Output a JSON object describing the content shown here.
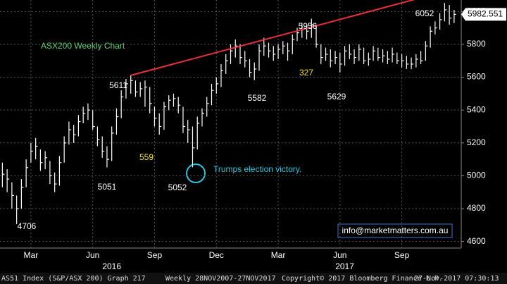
{
  "chart_data": {
    "type": "hlc",
    "title": "ASX200 Weekly Chart",
    "high": [
      5080,
      5040,
      4960,
      4880,
      4980,
      5100,
      5200,
      5230,
      5160,
      5150,
      5090,
      5020,
      5120,
      5240,
      5330,
      5310,
      5370,
      5420,
      5440,
      5400,
      5300,
      5240,
      5180,
      5300,
      5410,
      5520,
      5590,
      5611,
      5580,
      5570,
      5580,
      5540,
      5420,
      5380,
      5450,
      5490,
      5500,
      5480,
      5420,
      5340,
      5300,
      5360,
      5410,
      5480,
      5560,
      5600,
      5680,
      5740,
      5800,
      5830,
      5800,
      5760,
      5710,
      5690,
      5800,
      5840,
      5810,
      5790,
      5800,
      5820,
      5810,
      5860,
      5900,
      5930,
      5920,
      5956,
      5920,
      5800,
      5780,
      5770,
      5760,
      5750,
      5790,
      5800,
      5770,
      5800,
      5780,
      5750,
      5790,
      5780,
      5770,
      5760,
      5780,
      5750,
      5740,
      5730,
      5720,
      5740,
      5760,
      5820,
      5910,
      5940,
      5990,
      6052,
      6040,
      6010
    ],
    "low": [
      4930,
      4900,
      4800,
      4706,
      4800,
      4930,
      5080,
      5100,
      5030,
      5040,
      4950,
      4900,
      4940,
      5080,
      5190,
      5200,
      5240,
      5320,
      5340,
      5280,
      5180,
      5110,
      5051,
      5090,
      5250,
      5350,
      5470,
      5500,
      5480,
      5480,
      5420,
      5380,
      5300,
      5250,
      5280,
      5400,
      5420,
      5380,
      5260,
      5200,
      5052,
      5160,
      5300,
      5360,
      5430,
      5500,
      5540,
      5620,
      5680,
      5720,
      5680,
      5660,
      5600,
      5582,
      5640,
      5730,
      5720,
      5700,
      5710,
      5740,
      5700,
      5740,
      5820,
      5840,
      5830,
      5840,
      5780,
      5680,
      5700,
      5660,
      5680,
      5629,
      5670,
      5710,
      5680,
      5700,
      5680,
      5670,
      5700,
      5700,
      5690,
      5680,
      5690,
      5680,
      5660,
      5650,
      5650,
      5660,
      5680,
      5700,
      5780,
      5860,
      5890,
      5940,
      5920,
      5930
    ],
    "close": [
      5010,
      4980,
      4880,
      4800,
      4930,
      5050,
      5150,
      5180,
      5080,
      5110,
      5000,
      4950,
      5080,
      5200,
      5280,
      5250,
      5330,
      5380,
      5400,
      5300,
      5220,
      5150,
      5100,
      5260,
      5360,
      5480,
      5560,
      5580,
      5510,
      5530,
      5540,
      5440,
      5350,
      5300,
      5420,
      5460,
      5470,
      5430,
      5300,
      5280,
      5170,
      5320,
      5380,
      5440,
      5520,
      5560,
      5640,
      5700,
      5760,
      5790,
      5720,
      5700,
      5630,
      5650,
      5760,
      5790,
      5760,
      5740,
      5770,
      5790,
      5760,
      5830,
      5870,
      5890,
      5880,
      5920,
      5800,
      5720,
      5740,
      5700,
      5720,
      5680,
      5760,
      5740,
      5720,
      5770,
      5700,
      5710,
      5760,
      5720,
      5730,
      5710,
      5740,
      5700,
      5700,
      5680,
      5680,
      5710,
      5700,
      5790,
      5880,
      5900,
      5950,
      6010,
      5960,
      5982.551
    ],
    "color": "#ffffff",
    "xlim": [
      -0.5,
      96.5
    ],
    "xticks": [
      {
        "value": 6,
        "label": "Mar"
      },
      {
        "value": 19,
        "label": "Jun"
      },
      {
        "value": 32,
        "label": "Sep"
      },
      {
        "value": 45,
        "label": "Dec"
      },
      {
        "value": 58,
        "label": "Mar"
      },
      {
        "value": 71,
        "label": "Jun"
      },
      {
        "value": 84,
        "label": "Sep"
      }
    ],
    "year_labels": [
      {
        "value": 23,
        "label": "2016"
      },
      {
        "value": 72,
        "label": "2017"
      }
    ],
    "ylim": [
      4560,
      6070
    ],
    "yticks": [
      4600,
      4800,
      5000,
      5200,
      5400,
      5600,
      5800,
      6000
    ],
    "grid": true,
    "trendline": {
      "x": [
        27,
        94
      ],
      "y": [
        5611,
        6130
      ],
      "color": "#e8303a"
    },
    "annotations": [
      {
        "text": "5611",
        "color": "#ffffff"
      },
      {
        "text": "559",
        "color": "#f0e020"
      },
      {
        "text": "5051",
        "color": "#ffffff"
      },
      {
        "text": "5052",
        "color": "#ffffff"
      },
      {
        "text": "5582",
        "color": "#ffffff"
      },
      {
        "text": "5956",
        "color": "#ffffff"
      },
      {
        "text": "327",
        "color": "#f0e020"
      },
      {
        "text": "5629",
        "color": "#ffffff"
      },
      {
        "text": "6052",
        "color": "#ffffff"
      },
      {
        "text": "4706",
        "color": "#ffffff"
      },
      {
        "text": "Trumps election victory.",
        "color": "#28c8e0"
      }
    ],
    "title_color": "#5cd070",
    "watermark": "info@marketmatters.com.au",
    "footer": [
      "AS51 Index (S&P/ASX 200) Graph 217",
      "Weekly 28NOV2007-27NOV2017",
      "Copyright© 2017 Bloomberg Finance L.P.",
      "27-Nov-2017 07:30:13"
    ]
  }
}
